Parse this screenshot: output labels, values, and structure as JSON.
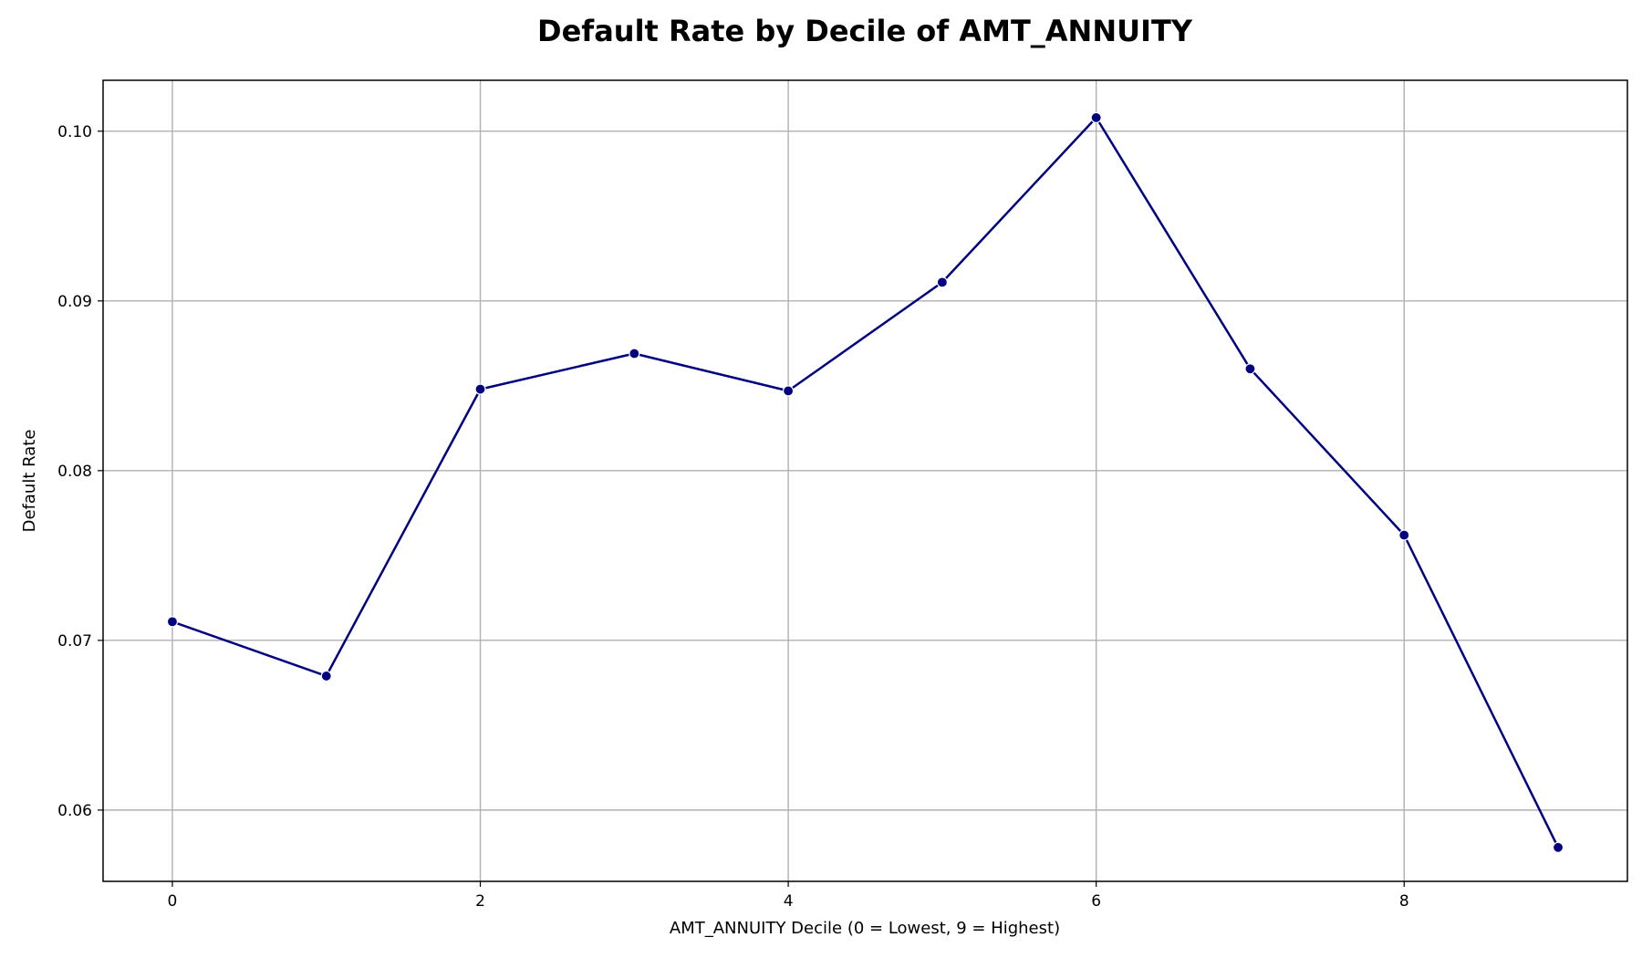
{
  "chart_data": {
    "type": "line",
    "title": "Default Rate by Decile of AMT_ANNUITY",
    "xlabel": "AMT_ANNUITY Decile (0 = Lowest, 9 = Highest)",
    "ylabel": "Default Rate",
    "x": [
      0,
      1,
      2,
      3,
      4,
      5,
      6,
      7,
      8,
      9
    ],
    "series": [
      {
        "values": [
          0.0711,
          0.0679,
          0.0848,
          0.0869,
          0.0847,
          0.0911,
          0.1008,
          0.086,
          0.0762,
          0.0578
        ],
        "color": "#000080",
        "marker": "circle"
      }
    ],
    "xlim": [
      -0.45,
      9.45
    ],
    "ylim": [
      0.0558,
      0.103
    ],
    "xticks": [
      0,
      2,
      4,
      6,
      8
    ],
    "xtick_labels": [
      "0",
      "2",
      "4",
      "6",
      "8"
    ],
    "yticks": [
      0.06,
      0.07,
      0.08,
      0.09,
      0.1
    ],
    "ytick_labels": [
      "0.06",
      "0.07",
      "0.08",
      "0.09",
      "0.10"
    ],
    "grid": true,
    "legend": "none"
  }
}
